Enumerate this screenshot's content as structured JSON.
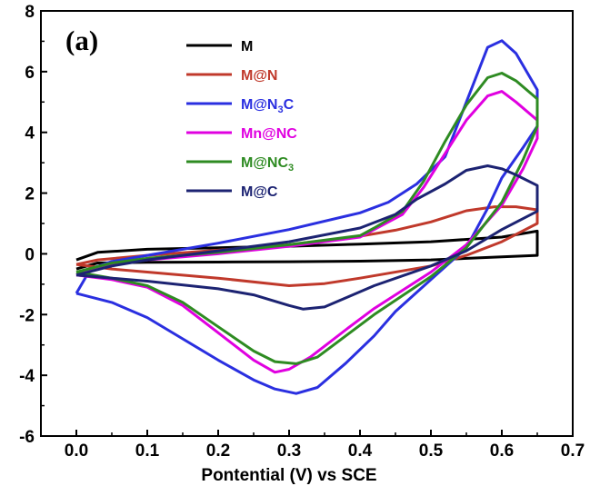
{
  "chart_data": {
    "type": "line",
    "panel_label": "(a)",
    "title": "",
    "xlabel": "Pontential (V) vs SCE",
    "ylabel": "",
    "xlim": [
      -0.05,
      0.7
    ],
    "ylim": [
      -6,
      8
    ],
    "x_ticks": [
      "0.0",
      "0.1",
      "0.2",
      "0.3",
      "0.4",
      "0.5",
      "0.6",
      "0.7"
    ],
    "x_tick_values": [
      0.0,
      0.1,
      0.2,
      0.3,
      0.4,
      0.5,
      0.6,
      0.7
    ],
    "y_ticks": [
      "-6",
      "-4",
      "-2",
      "0",
      "2",
      "4",
      "6",
      "8"
    ],
    "y_tick_values": [
      -6,
      -4,
      -2,
      0,
      2,
      4,
      6,
      8
    ],
    "grid": false,
    "legend_position": "top-center",
    "series": [
      {
        "name": "M",
        "legend_main": "M",
        "legend_sub": "",
        "legend_tail": "",
        "color": "#000000",
        "points": [
          [
            0.0,
            -0.5
          ],
          [
            0.03,
            -0.3
          ],
          [
            0.1,
            -0.28
          ],
          [
            0.2,
            -0.27
          ],
          [
            0.3,
            -0.26
          ],
          [
            0.4,
            -0.24
          ],
          [
            0.5,
            -0.2
          ],
          [
            0.6,
            -0.1
          ],
          [
            0.65,
            -0.05
          ],
          [
            0.65,
            0.75
          ],
          [
            0.6,
            0.55
          ],
          [
            0.5,
            0.4
          ],
          [
            0.4,
            0.32
          ],
          [
            0.3,
            0.25
          ],
          [
            0.2,
            0.2
          ],
          [
            0.1,
            0.15
          ],
          [
            0.03,
            0.05
          ],
          [
            0.0,
            -0.2
          ]
        ]
      },
      {
        "name": "M@N",
        "legend_main": "M@N",
        "legend_sub": "",
        "legend_tail": "",
        "color": "#c0392b",
        "points": [
          [
            0.0,
            -0.35
          ],
          [
            0.05,
            -0.5
          ],
          [
            0.1,
            -0.6
          ],
          [
            0.2,
            -0.8
          ],
          [
            0.3,
            -1.05
          ],
          [
            0.35,
            -0.98
          ],
          [
            0.4,
            -0.8
          ],
          [
            0.5,
            -0.4
          ],
          [
            0.55,
            -0.05
          ],
          [
            0.6,
            0.4
          ],
          [
            0.65,
            1.0
          ],
          [
            0.65,
            1.45
          ],
          [
            0.62,
            1.55
          ],
          [
            0.59,
            1.55
          ],
          [
            0.55,
            1.42
          ],
          [
            0.5,
            1.05
          ],
          [
            0.45,
            0.78
          ],
          [
            0.4,
            0.58
          ],
          [
            0.3,
            0.3
          ],
          [
            0.2,
            0.12
          ],
          [
            0.1,
            -0.05
          ],
          [
            0.03,
            -0.2
          ],
          [
            0.0,
            -0.35
          ]
        ]
      },
      {
        "name": "M@N3C",
        "legend_main": "M@N",
        "legend_sub": "3",
        "legend_tail": "C",
        "color": "#2a2fe0",
        "points": [
          [
            0.0,
            -1.3
          ],
          [
            0.05,
            -1.6
          ],
          [
            0.1,
            -2.1
          ],
          [
            0.15,
            -2.8
          ],
          [
            0.2,
            -3.5
          ],
          [
            0.25,
            -4.15
          ],
          [
            0.28,
            -4.45
          ],
          [
            0.31,
            -4.6
          ],
          [
            0.34,
            -4.4
          ],
          [
            0.38,
            -3.6
          ],
          [
            0.42,
            -2.7
          ],
          [
            0.45,
            -1.9
          ],
          [
            0.5,
            -0.85
          ],
          [
            0.55,
            0.2
          ],
          [
            0.58,
            1.5
          ],
          [
            0.6,
            2.5
          ],
          [
            0.63,
            3.5
          ],
          [
            0.65,
            4.2
          ],
          [
            0.65,
            5.4
          ],
          [
            0.62,
            6.6
          ],
          [
            0.6,
            7.02
          ],
          [
            0.58,
            6.8
          ],
          [
            0.55,
            5.0
          ],
          [
            0.52,
            3.2
          ],
          [
            0.48,
            2.3
          ],
          [
            0.44,
            1.7
          ],
          [
            0.4,
            1.35
          ],
          [
            0.3,
            0.8
          ],
          [
            0.2,
            0.35
          ],
          [
            0.1,
            -0.05
          ],
          [
            0.05,
            -0.25
          ],
          [
            0.02,
            -0.5
          ],
          [
            0.0,
            -1.3
          ]
        ]
      },
      {
        "name": "Mn@NC",
        "legend_main": "Mn@NC",
        "legend_sub": "",
        "legend_tail": "",
        "color": "#e000e0",
        "points": [
          [
            0.0,
            -0.7
          ],
          [
            0.05,
            -0.85
          ],
          [
            0.1,
            -1.1
          ],
          [
            0.15,
            -1.7
          ],
          [
            0.2,
            -2.6
          ],
          [
            0.25,
            -3.5
          ],
          [
            0.28,
            -3.9
          ],
          [
            0.3,
            -3.8
          ],
          [
            0.33,
            -3.4
          ],
          [
            0.38,
            -2.5
          ],
          [
            0.42,
            -1.8
          ],
          [
            0.5,
            -0.6
          ],
          [
            0.55,
            0.3
          ],
          [
            0.6,
            1.6
          ],
          [
            0.63,
            2.8
          ],
          [
            0.65,
            3.8
          ],
          [
            0.65,
            4.4
          ],
          [
            0.62,
            5.0
          ],
          [
            0.6,
            5.35
          ],
          [
            0.58,
            5.2
          ],
          [
            0.55,
            4.4
          ],
          [
            0.52,
            3.3
          ],
          [
            0.49,
            2.2
          ],
          [
            0.46,
            1.3
          ],
          [
            0.42,
            0.8
          ],
          [
            0.4,
            0.55
          ],
          [
            0.3,
            0.25
          ],
          [
            0.2,
            0.0
          ],
          [
            0.1,
            -0.2
          ],
          [
            0.05,
            -0.35
          ],
          [
            0.0,
            -0.7
          ]
        ]
      },
      {
        "name": "M@NC3",
        "legend_main": "M@NC",
        "legend_sub": "3",
        "legend_tail": "",
        "color": "#2e8b22",
        "points": [
          [
            0.0,
            -0.6
          ],
          [
            0.05,
            -0.8
          ],
          [
            0.1,
            -1.05
          ],
          [
            0.15,
            -1.6
          ],
          [
            0.2,
            -2.4
          ],
          [
            0.25,
            -3.2
          ],
          [
            0.28,
            -3.55
          ],
          [
            0.31,
            -3.62
          ],
          [
            0.34,
            -3.4
          ],
          [
            0.38,
            -2.7
          ],
          [
            0.42,
            -2.0
          ],
          [
            0.5,
            -0.75
          ],
          [
            0.55,
            0.2
          ],
          [
            0.6,
            1.7
          ],
          [
            0.63,
            3.1
          ],
          [
            0.65,
            4.2
          ],
          [
            0.65,
            5.1
          ],
          [
            0.62,
            5.7
          ],
          [
            0.6,
            5.95
          ],
          [
            0.58,
            5.8
          ],
          [
            0.55,
            4.9
          ],
          [
            0.52,
            3.7
          ],
          [
            0.49,
            2.4
          ],
          [
            0.46,
            1.4
          ],
          [
            0.42,
            0.85
          ],
          [
            0.4,
            0.6
          ],
          [
            0.3,
            0.3
          ],
          [
            0.2,
            0.05
          ],
          [
            0.1,
            -0.15
          ],
          [
            0.05,
            -0.3
          ],
          [
            0.0,
            -0.6
          ]
        ]
      },
      {
        "name": "M@C",
        "legend_main": "M@C",
        "legend_sub": "",
        "legend_tail": "",
        "color": "#1c2372",
        "points": [
          [
            0.0,
            -0.7
          ],
          [
            0.05,
            -0.8
          ],
          [
            0.1,
            -0.9
          ],
          [
            0.2,
            -1.15
          ],
          [
            0.25,
            -1.35
          ],
          [
            0.3,
            -1.7
          ],
          [
            0.32,
            -1.82
          ],
          [
            0.35,
            -1.75
          ],
          [
            0.38,
            -1.45
          ],
          [
            0.42,
            -1.05
          ],
          [
            0.5,
            -0.4
          ],
          [
            0.55,
            0.1
          ],
          [
            0.6,
            0.8
          ],
          [
            0.65,
            1.4
          ],
          [
            0.65,
            2.25
          ],
          [
            0.62,
            2.6
          ],
          [
            0.6,
            2.8
          ],
          [
            0.58,
            2.9
          ],
          [
            0.55,
            2.75
          ],
          [
            0.52,
            2.3
          ],
          [
            0.48,
            1.8
          ],
          [
            0.45,
            1.3
          ],
          [
            0.4,
            0.85
          ],
          [
            0.3,
            0.4
          ],
          [
            0.2,
            0.1
          ],
          [
            0.1,
            -0.2
          ],
          [
            0.05,
            -0.4
          ],
          [
            0.0,
            -0.7
          ]
        ]
      }
    ]
  }
}
